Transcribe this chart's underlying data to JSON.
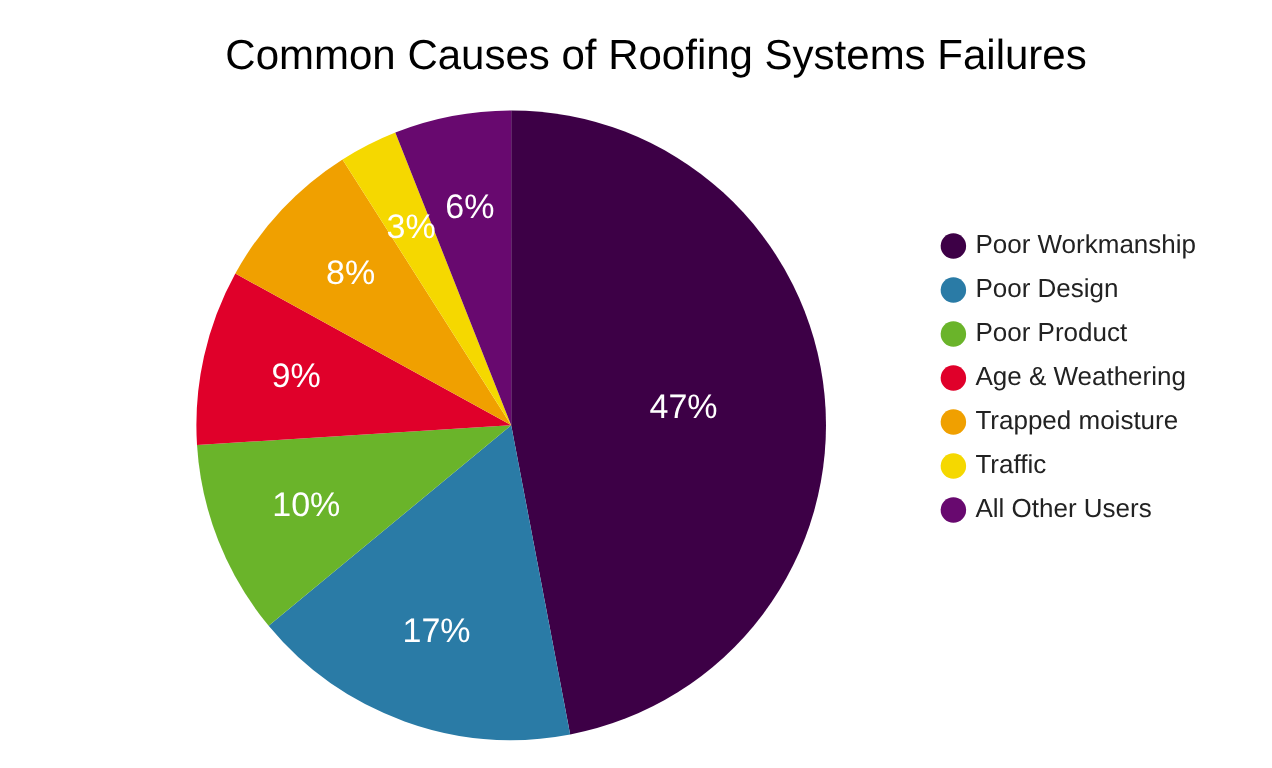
{
  "chart_data": {
    "type": "pie",
    "title": "Common Causes of Roofing Systems Failures",
    "categories": [
      "Poor Workmanship",
      "Poor Design",
      "Poor Product",
      "Age & Weathering",
      "Trapped moisture",
      "Traffic",
      "All Other Users"
    ],
    "values": [
      47,
      17,
      10,
      9,
      8,
      3,
      6
    ],
    "colors": [
      "#3d0046",
      "#2a7ba6",
      "#6ab42a",
      "#e0002a",
      "#f0a000",
      "#f5d800",
      "#68096f"
    ],
    "value_labels": [
      "47%",
      "17%",
      "10%",
      "9%",
      "8%",
      "3%",
      "6%"
    ],
    "legend": "right"
  }
}
